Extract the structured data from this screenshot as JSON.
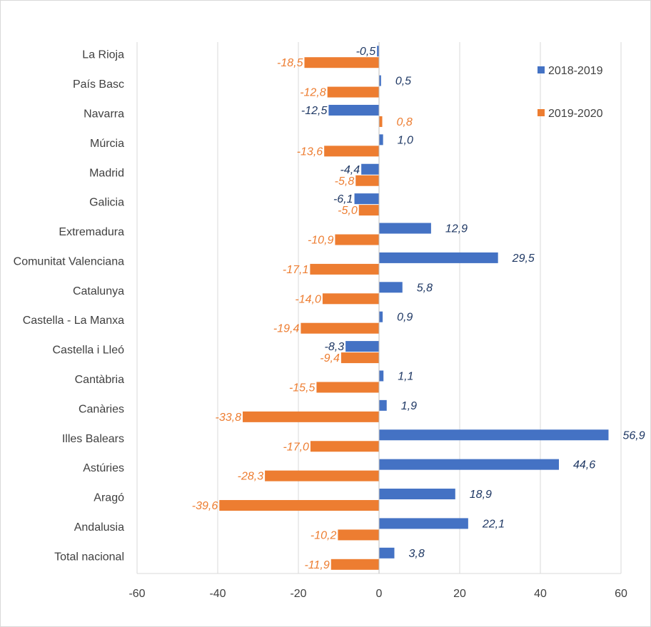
{
  "chart_data": {
    "type": "bar",
    "orientation": "horizontal",
    "categories": [
      "La Rioja",
      "País Basc",
      "Navarra",
      "Múrcia",
      "Madrid",
      "Galicia",
      "Extremadura",
      "Comunitat Valenciana",
      "Catalunya",
      "Castella - La Manxa",
      "Castella i Lleó",
      "Cantàbria",
      "Canàries",
      "Illes Balears",
      "Astúries",
      "Aragó",
      "Andalusia",
      "Total nacional"
    ],
    "series": [
      {
        "name": "2018-2019",
        "color": "#4472c4",
        "label_color": "#1f3864",
        "values": [
          -0.5,
          0.5,
          -12.5,
          1.0,
          -4.4,
          -6.1,
          12.9,
          29.5,
          5.8,
          0.9,
          -8.3,
          1.1,
          1.9,
          56.9,
          44.6,
          18.9,
          22.1,
          3.8
        ],
        "labels": [
          "-0,5",
          "0,5",
          "-12,5",
          "1,0",
          "-4,4",
          "-6,1",
          "12,9",
          "29,5",
          "5,8",
          "0,9",
          "-8,3",
          "1,1",
          "1,9",
          "56,9",
          "44,6",
          "18,9",
          "22,1",
          "3,8"
        ]
      },
      {
        "name": "2019-2020",
        "color": "#ed7d31",
        "label_color": "#ed7d31",
        "values": [
          -18.5,
          -12.8,
          0.8,
          -13.6,
          -5.8,
          -5.0,
          -10.9,
          -17.1,
          -14.0,
          -19.4,
          -9.4,
          -15.5,
          -33.8,
          -17.0,
          -28.3,
          -39.6,
          -10.2,
          -11.9
        ],
        "labels": [
          "-18,5",
          "-12,8",
          "0,8",
          "-13,6",
          "-5,8",
          "-5,0",
          "-10,9",
          "-17,1",
          "-14,0",
          "-19,4",
          "-9,4",
          "-15,5",
          "-33,8",
          "-17,0",
          "-28,3",
          "-39,6",
          "-10,2",
          "-11,9"
        ]
      }
    ],
    "xlim": [
      -60,
      60
    ],
    "xticks": [
      -60,
      -40,
      -20,
      0,
      20,
      40,
      60
    ],
    "grid": true,
    "legend_position": "top-right",
    "title": "",
    "xlabel": "",
    "ylabel": ""
  }
}
